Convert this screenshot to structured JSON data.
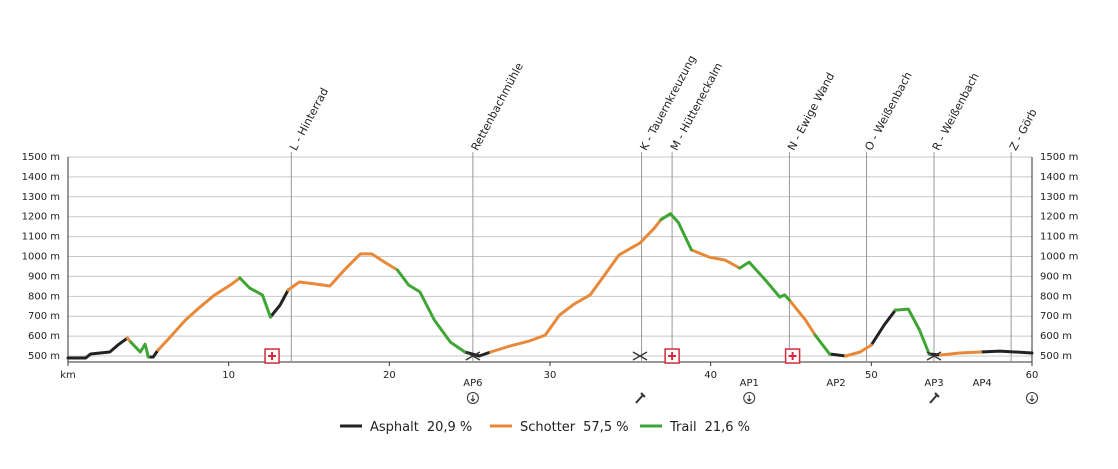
{
  "chart_data": {
    "type": "elevation-profile",
    "x": [
      0,
      1.1,
      1.4,
      2.0,
      2.6,
      3.1,
      3.7,
      3.9,
      4.2,
      4.5,
      4.8,
      5.0,
      5.3,
      5.6,
      6.3,
      7.3,
      8.2,
      9.1,
      10.1,
      10.7,
      11.3,
      12.1,
      12.6,
      13.2,
      13.7,
      14.4,
      15.4,
      16.3,
      17.2,
      18.2,
      18.9,
      19.7,
      20.5,
      21.2,
      21.9,
      22.8,
      23.8,
      24.7,
      25.6,
      26.3,
      27.5,
      28.7,
      29.7,
      30.6,
      31.5,
      32.5,
      33.4,
      34.3,
      35.6,
      36.5,
      36.9,
      37.5,
      38.0,
      38.8,
      39.9,
      40.9,
      41.8,
      42.4,
      43.4,
      44.3,
      44.6,
      44.9,
      45.9,
      46.5,
      47.4,
      48.4,
      49.3,
      50.0,
      50.8,
      51.5,
      52.3,
      53.0,
      53.6,
      54.3,
      55.5,
      56.8,
      58.0,
      60
    ],
    "series": [
      {
        "name": "Asphalt",
        "share_label": "20,9 %",
        "color": "#222222",
        "values": [
          490,
          490,
          510,
          515,
          520,
          555,
          590,
          null,
          null,
          null,
          null,
          495,
          495,
          530,
          null,
          null,
          null,
          null,
          null,
          null,
          null,
          null,
          696,
          756,
          832,
          null,
          null,
          null,
          null,
          null,
          null,
          null,
          null,
          null,
          null,
          null,
          null,
          520,
          500,
          520,
          null,
          null,
          null,
          null,
          null,
          null,
          null,
          null,
          null,
          null,
          null,
          null,
          null,
          null,
          null,
          null,
          null,
          null,
          null,
          null,
          null,
          null,
          null,
          null,
          510,
          500,
          null,
          555,
          656,
          731,
          null,
          null,
          510,
          505,
          null,
          520,
          525,
          515
        ]
      },
      {
        "name": "Schotter",
        "share_label": "57,5 %",
        "color": "#e8893a",
        "values": [
          null,
          null,
          null,
          null,
          null,
          null,
          590,
          570,
          null,
          null,
          null,
          null,
          null,
          530,
          590,
          680,
          745,
          805,
          857,
          892,
          null,
          null,
          null,
          null,
          832,
          872,
          862,
          852,
          932,
          1013,
          1013,
          972,
          932,
          null,
          null,
          null,
          null,
          null,
          null,
          520,
          550,
          575,
          605,
          706,
          761,
          807,
          907,
          1008,
          1068,
          1143,
          1185,
          null,
          null,
          1033,
          997,
          982,
          942,
          null,
          null,
          null,
          null,
          781,
          681,
          605,
          null,
          500,
          520,
          555,
          null,
          null,
          null,
          null,
          null,
          505,
          515,
          520,
          null,
          null
        ]
      },
      {
        "name": "Trail",
        "share_label": "21,6 %",
        "color": "#3fa535",
        "values": [
          null,
          null,
          null,
          null,
          null,
          null,
          null,
          570,
          545,
          520,
          560,
          495,
          null,
          null,
          null,
          null,
          null,
          null,
          null,
          892,
          842,
          807,
          696,
          null,
          null,
          null,
          null,
          null,
          null,
          null,
          null,
          null,
          932,
          857,
          822,
          681,
          570,
          520,
          null,
          null,
          null,
          null,
          null,
          null,
          null,
          null,
          null,
          null,
          null,
          null,
          1185,
          1215,
          1170,
          1033,
          null,
          null,
          942,
          972,
          882,
          796,
          807,
          781,
          null,
          605,
          510,
          null,
          null,
          null,
          null,
          731,
          736,
          631,
          510,
          null,
          null,
          null,
          null,
          null
        ]
      }
    ],
    "xlim": [
      0,
      60
    ],
    "xticks": [
      {
        "value": 0,
        "label": "km"
      },
      10,
      20,
      30,
      40,
      50,
      60
    ],
    "ylim": [
      470,
      1500
    ],
    "yticks": [
      {
        "value": 500,
        "label": "500 m"
      },
      {
        "value": 600,
        "label": "600 m"
      },
      {
        "value": 700,
        "label": "700 m"
      },
      {
        "value": 800,
        "label": "800 m"
      },
      {
        "value": 900,
        "label": "900 m"
      },
      {
        "value": 1000,
        "label": "1000 m"
      },
      {
        "value": 1100,
        "label": "1100 m"
      },
      {
        "value": 1200,
        "label": "1200 m"
      },
      {
        "value": 1300,
        "label": "1300 m"
      },
      {
        "value": 1400,
        "label": "1400 m"
      },
      {
        "value": 1500,
        "label": "1500 m"
      }
    ],
    "grid": true,
    "waypoints": [
      {
        "label": "L - Hinterrad",
        "km": 13.9
      },
      {
        "label": "Rettenbachmühle",
        "km": 25.2
      },
      {
        "label": "K - Tauernkreuzung",
        "km": 35.7
      },
      {
        "label": "M - Hütteneckalm",
        "km": 37.6
      },
      {
        "label": "N - Ewige Wand",
        "km": 44.9
      },
      {
        "label": "O - Weißenbach",
        "km": 49.7
      },
      {
        "label": "R - Weißenbach",
        "km": 53.9
      },
      {
        "label": "Z - Görb",
        "km": 58.7
      }
    ],
    "markers": [
      {
        "kind": "plus",
        "km": 12.7
      },
      {
        "kind": "plus",
        "km": 37.6
      },
      {
        "kind": "plus",
        "km": 45.1
      },
      {
        "kind": "cross",
        "km": 25.2
      },
      {
        "kind": "cross",
        "km": 35.6
      },
      {
        "kind": "cross",
        "km": 53.9
      }
    ],
    "stations": [
      {
        "label": "AP6",
        "km": 25.2
      },
      {
        "label": "AP1",
        "km": 42.4
      },
      {
        "label": "AP2",
        "km": 47.8
      },
      {
        "label": "AP3",
        "km": 53.9
      },
      {
        "label": "AP4",
        "km": 56.9
      }
    ],
    "icons": [
      {
        "kind": "circle",
        "km": 25.2
      },
      {
        "kind": "wrench",
        "km": 35.6
      },
      {
        "kind": "circle",
        "km": 42.4
      },
      {
        "kind": "wrench",
        "km": 53.9
      },
      {
        "kind": "circle",
        "km": 60
      }
    ]
  }
}
